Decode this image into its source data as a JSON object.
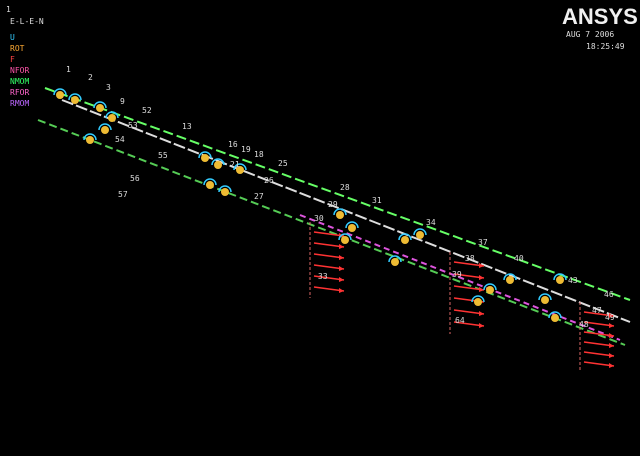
{
  "corner_number": "1",
  "view_label": "E-L-E-N",
  "legend": [
    "U",
    "ROT",
    "F",
    "NFOR",
    "NMOM",
    "RFOR",
    "RMOM"
  ],
  "logo": "ANSYS",
  "date": "AUG  7 2006",
  "time": "18:25:49",
  "node_labels": [
    "1",
    "2",
    "3",
    "9",
    "52",
    "53",
    "54",
    "55",
    "56",
    "57",
    "13",
    "16",
    "19",
    "18",
    "25",
    "21",
    "26",
    "27",
    "28",
    "29",
    "30",
    "31",
    "34",
    "33",
    "37",
    "38",
    "39",
    "40",
    "43",
    "46",
    "47",
    "48",
    "49",
    "64"
  ]
}
